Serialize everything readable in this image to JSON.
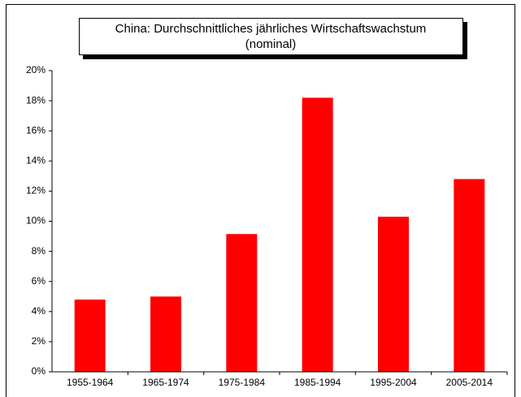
{
  "chart_data": {
    "type": "bar",
    "title": [
      "China: Durchschnittliches jährliches Wirtschaftswachstum",
      "(nominal)"
    ],
    "categories": [
      "1955-1964",
      "1965-1974",
      "1975-1984",
      "1985-1994",
      "1995-2004",
      "2005-2014"
    ],
    "values": [
      4.8,
      5.0,
      9.15,
      18.2,
      10.3,
      12.8
    ],
    "color": "#ff0000",
    "ylim": [
      0,
      20
    ],
    "yticks": [
      {
        "value": 0,
        "label": "0%"
      },
      {
        "value": 2,
        "label": "2%"
      },
      {
        "value": 4,
        "label": "4%"
      },
      {
        "value": 6,
        "label": "6%"
      },
      {
        "value": 8,
        "label": "8%"
      },
      {
        "value": 10,
        "label": "10%"
      },
      {
        "value": 12,
        "label": "12%"
      },
      {
        "value": 14,
        "label": "14%"
      },
      {
        "value": 16,
        "label": "16%"
      },
      {
        "value": 18,
        "label": "18%"
      },
      {
        "value": 20,
        "label": "20%"
      }
    ],
    "grid": false
  }
}
